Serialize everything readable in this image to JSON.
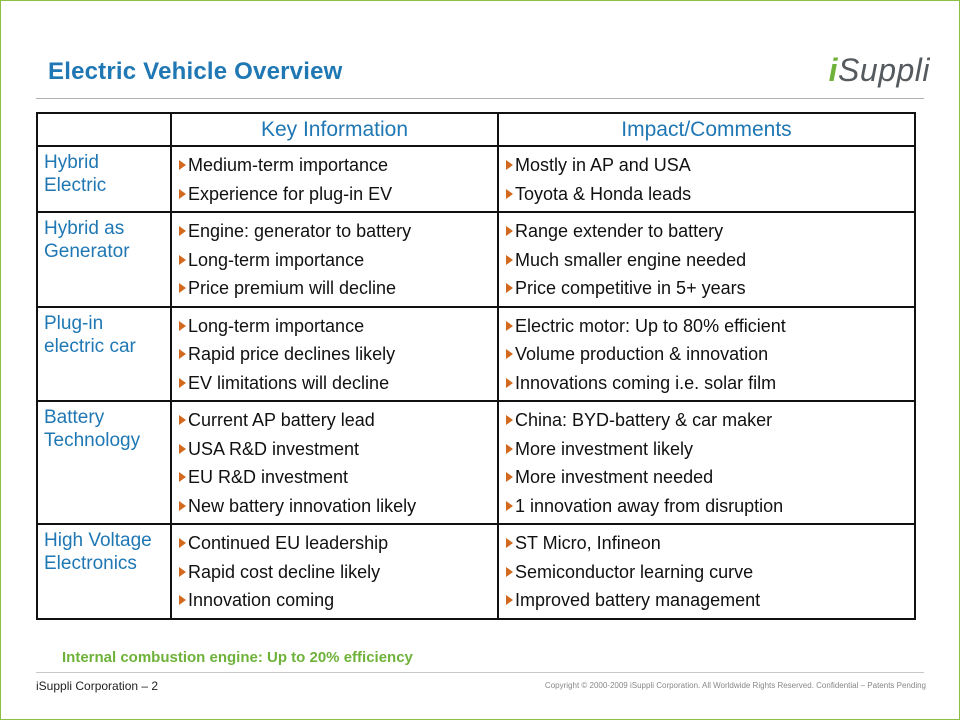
{
  "header": {
    "title": "Electric Vehicle Overview",
    "logo_i": "i",
    "logo_rest": "Suppli"
  },
  "table": {
    "columns": [
      "",
      "Key Information",
      "Impact/Comments"
    ],
    "rows": [
      {
        "category": "Hybrid Electric",
        "key_info": [
          "Medium-term importance",
          "Experience for plug-in EV"
        ],
        "impact": [
          "Mostly in AP and USA",
          "Toyota & Honda leads"
        ]
      },
      {
        "category": "Hybrid as Generator",
        "key_info": [
          "Engine: generator to battery",
          "Long-term importance",
          "Price premium will decline"
        ],
        "impact": [
          "Range extender to battery",
          "Much smaller engine needed",
          "Price competitive in 5+ years"
        ]
      },
      {
        "category": "Plug-in electric car",
        "key_info": [
          "Long-term importance",
          "Rapid price declines likely",
          "EV limitations will decline"
        ],
        "impact": [
          "Electric motor: Up to 80% efficient",
          "Volume production & innovation",
          "Innovations coming i.e. solar film"
        ]
      },
      {
        "category": "Battery Technology",
        "key_info": [
          "Current AP battery lead",
          "USA R&D investment",
          "EU R&D investment",
          "New battery innovation likely"
        ],
        "impact": [
          "China: BYD-battery & car maker",
          "More investment likely",
          "More investment needed",
          "1 innovation away from disruption"
        ]
      },
      {
        "category": "High Voltage Electronics",
        "key_info": [
          "Continued EU leadership",
          "Rapid cost decline likely",
          "Innovation coming"
        ],
        "impact": [
          "ST Micro, Infineon",
          "Semiconductor learning curve",
          "Improved battery management"
        ]
      }
    ]
  },
  "note": "Internal combustion engine: Up to 20% efficiency",
  "footer": {
    "left": "iSuppli Corporation – 2",
    "right": "Copyright © 2000-2009  iSuppli Corporation.  All Worldwide Rights Reserved. Confidential – Patents Pending"
  },
  "colors": {
    "title": "#1f77b4",
    "accent_green": "#6fb23a",
    "bullet": "#d2691e",
    "frame": "#8cbf3f"
  }
}
